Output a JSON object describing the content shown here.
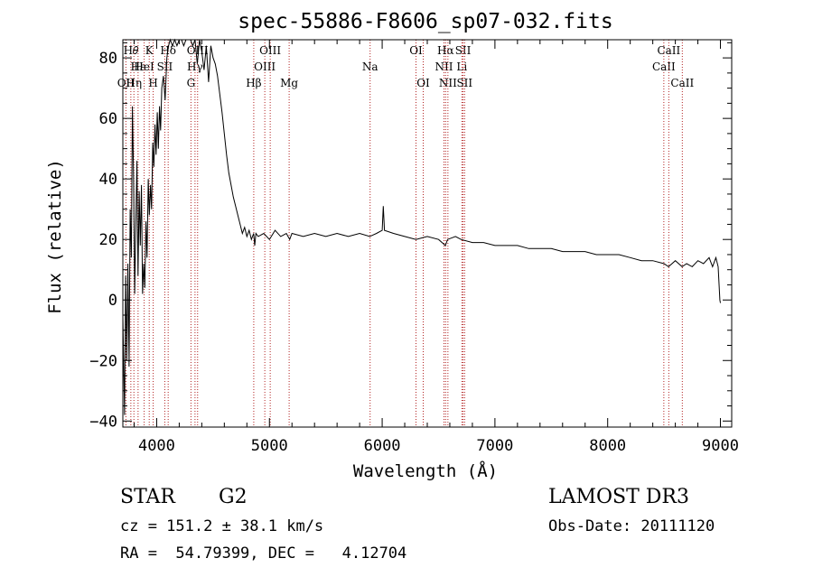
{
  "chart_data": {
    "type": "line",
    "title": "spec-55886-F8606_sp07-032.fits",
    "xlabel": "Wavelength (Å)",
    "ylabel": "Flux (relative)",
    "xlim": [
      3700,
      9100
    ],
    "ylim": [
      -42,
      86
    ],
    "x_ticks": [
      4000,
      5000,
      6000,
      7000,
      8000,
      9000
    ],
    "y_ticks": [
      -40,
      -20,
      0,
      20,
      40,
      60,
      80
    ],
    "grid": false,
    "series": [
      {
        "name": "flux",
        "points": [
          [
            3700,
            -5
          ],
          [
            3715,
            -38
          ],
          [
            3725,
            8
          ],
          [
            3735,
            -20
          ],
          [
            3745,
            12
          ],
          [
            3755,
            -22
          ],
          [
            3765,
            30
          ],
          [
            3775,
            14
          ],
          [
            3785,
            64
          ],
          [
            3795,
            40
          ],
          [
            3805,
            2
          ],
          [
            3815,
            26
          ],
          [
            3825,
            46
          ],
          [
            3835,
            8
          ],
          [
            3845,
            36
          ],
          [
            3855,
            18
          ],
          [
            3865,
            38
          ],
          [
            3875,
            2
          ],
          [
            3885,
            12
          ],
          [
            3895,
            4
          ],
          [
            3905,
            26
          ],
          [
            3915,
            14
          ],
          [
            3925,
            40
          ],
          [
            3935,
            28
          ],
          [
            3945,
            38
          ],
          [
            3955,
            30
          ],
          [
            3965,
            52
          ],
          [
            3975,
            44
          ],
          [
            3985,
            58
          ],
          [
            3995,
            48
          ],
          [
            4005,
            62
          ],
          [
            4015,
            50
          ],
          [
            4025,
            64
          ],
          [
            4035,
            56
          ],
          [
            4045,
            70
          ],
          [
            4060,
            74
          ],
          [
            4075,
            66
          ],
          [
            4090,
            80
          ],
          [
            4105,
            84
          ],
          [
            4120,
            86
          ],
          [
            4140,
            84
          ],
          [
            4160,
            86
          ],
          [
            4180,
            84
          ],
          [
            4200,
            86
          ],
          [
            4220,
            86
          ],
          [
            4240,
            84
          ],
          [
            4260,
            86
          ],
          [
            4280,
            86
          ],
          [
            4300,
            86
          ],
          [
            4320,
            84
          ],
          [
            4340,
            86
          ],
          [
            4360,
            78
          ],
          [
            4380,
            86
          ],
          [
            4400,
            82
          ],
          [
            4420,
            76
          ],
          [
            4440,
            84
          ],
          [
            4460,
            72
          ],
          [
            4480,
            84
          ],
          [
            4500,
            80
          ],
          [
            4520,
            78
          ],
          [
            4540,
            74
          ],
          [
            4560,
            68
          ],
          [
            4580,
            62
          ],
          [
            4600,
            55
          ],
          [
            4620,
            48
          ],
          [
            4640,
            42
          ],
          [
            4660,
            38
          ],
          [
            4680,
            34
          ],
          [
            4700,
            31
          ],
          [
            4720,
            28
          ],
          [
            4740,
            25
          ],
          [
            4760,
            22
          ],
          [
            4780,
            24
          ],
          [
            4800,
            21
          ],
          [
            4820,
            23
          ],
          [
            4840,
            20
          ],
          [
            4860,
            22
          ],
          [
            4870,
            18
          ],
          [
            4880,
            22
          ],
          [
            4900,
            21
          ],
          [
            4950,
            22
          ],
          [
            5000,
            20
          ],
          [
            5050,
            23
          ],
          [
            5100,
            21
          ],
          [
            5150,
            22
          ],
          [
            5180,
            20
          ],
          [
            5200,
            22
          ],
          [
            5300,
            21
          ],
          [
            5400,
            22
          ],
          [
            5500,
            21
          ],
          [
            5600,
            22
          ],
          [
            5700,
            21
          ],
          [
            5800,
            22
          ],
          [
            5890,
            21
          ],
          [
            5950,
            22
          ],
          [
            6000,
            23
          ],
          [
            6010,
            31
          ],
          [
            6020,
            23
          ],
          [
            6100,
            22
          ],
          [
            6200,
            21
          ],
          [
            6300,
            20
          ],
          [
            6400,
            21
          ],
          [
            6500,
            20
          ],
          [
            6560,
            18
          ],
          [
            6580,
            20
          ],
          [
            6650,
            21
          ],
          [
            6700,
            20
          ],
          [
            6800,
            19
          ],
          [
            6900,
            19
          ],
          [
            7000,
            18
          ],
          [
            7100,
            18
          ],
          [
            7200,
            18
          ],
          [
            7300,
            17
          ],
          [
            7400,
            17
          ],
          [
            7500,
            17
          ],
          [
            7600,
            16
          ],
          [
            7700,
            16
          ],
          [
            7800,
            16
          ],
          [
            7900,
            15
          ],
          [
            8000,
            15
          ],
          [
            8100,
            15
          ],
          [
            8200,
            14
          ],
          [
            8300,
            13
          ],
          [
            8400,
            13
          ],
          [
            8500,
            12
          ],
          [
            8540,
            11
          ],
          [
            8600,
            13
          ],
          [
            8660,
            11
          ],
          [
            8700,
            12
          ],
          [
            8750,
            11
          ],
          [
            8800,
            13
          ],
          [
            8850,
            12
          ],
          [
            8900,
            14
          ],
          [
            8930,
            11
          ],
          [
            8960,
            14
          ],
          [
            8980,
            11
          ],
          [
            8995,
            0
          ],
          [
            9000,
            -1
          ]
        ]
      }
    ],
    "lines": [
      {
        "x": 3727,
        "label": "OII",
        "row": 2
      },
      {
        "x": 3771,
        "label": "H𝜃",
        "row": 0
      },
      {
        "x": 3798,
        "label": "Hη",
        "row": 2
      },
      {
        "x": 3835,
        "label": "Hε",
        "row": 1
      },
      {
        "x": 3889,
        "label": "HeI",
        "row": 1
      },
      {
        "x": 3934,
        "label": "K",
        "row": 0
      },
      {
        "x": 3969,
        "label": "H",
        "row": 2
      },
      {
        "x": 4072,
        "label": "SII",
        "row": 1
      },
      {
        "x": 4102,
        "label": "Hδ",
        "row": 0
      },
      {
        "x": 4304,
        "label": "G",
        "row": 2
      },
      {
        "x": 4340,
        "label": "Hγ",
        "row": 1
      },
      {
        "x": 4363,
        "label": "OIII",
        "row": 0
      },
      {
        "x": 4861,
        "label": "Hβ",
        "row": 2
      },
      {
        "x": 4959,
        "label": "OIII",
        "row": 1
      },
      {
        "x": 5007,
        "label": "OIII",
        "row": 0
      },
      {
        "x": 5175,
        "label": "Mg",
        "row": 2
      },
      {
        "x": 5893,
        "label": "Na",
        "row": 1
      },
      {
        "x": 6300,
        "label": "OI",
        "row": 0
      },
      {
        "x": 6364,
        "label": "OI",
        "row": 2
      },
      {
        "x": 6548,
        "label": "NII",
        "row": 1
      },
      {
        "x": 6563,
        "label": "Hα",
        "row": 0
      },
      {
        "x": 6583,
        "label": "NII",
        "row": 2
      },
      {
        "x": 6707,
        "label": "Li",
        "row": 1
      },
      {
        "x": 6717,
        "label": "SII",
        "row": 0
      },
      {
        "x": 6731,
        "label": "SII",
        "row": 2
      },
      {
        "x": 8498,
        "label": "CaII",
        "row": 1
      },
      {
        "x": 8542,
        "label": "CaII",
        "row": 0
      },
      {
        "x": 8662,
        "label": "CaII",
        "row": 2
      }
    ]
  },
  "info": {
    "object_class": "STAR",
    "subclass": "G2",
    "survey": "LAMOST DR3",
    "redshift": "cz = 151.2 ± 38.1 km/s",
    "obs_date": "Obs-Date: 20111120",
    "coordinates": "RA =  54.79399, DEC =   4.12704"
  },
  "colors": {
    "line_marker": "#b22222",
    "spectrum": "#000000",
    "axes": "#000000"
  }
}
